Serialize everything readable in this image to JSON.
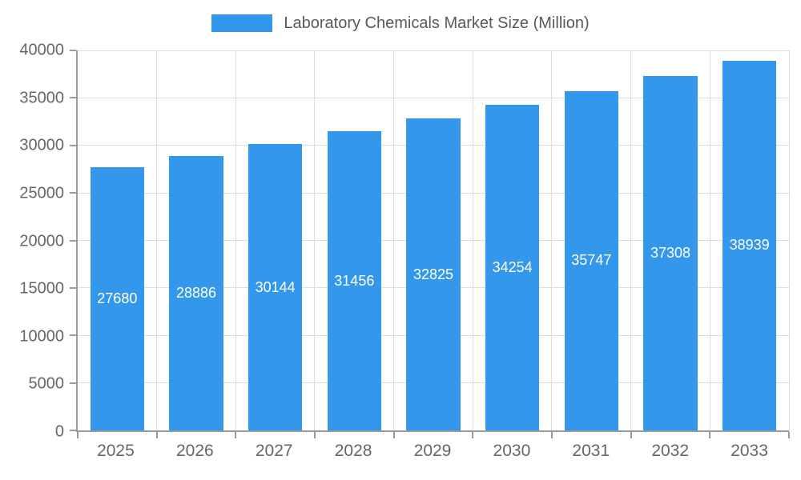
{
  "chart_data": {
    "type": "bar",
    "title": "Laboratory Chemicals Market Size (Million)",
    "categories": [
      "2025",
      "2026",
      "2027",
      "2028",
      "2029",
      "2030",
      "2031",
      "2032",
      "2033"
    ],
    "values": [
      27680,
      28886,
      30144,
      31456,
      32825,
      34254,
      35747,
      37308,
      38939
    ],
    "xlabel": "",
    "ylabel": "",
    "ylim": [
      0,
      40000
    ],
    "ytick_step": 5000,
    "grid": true,
    "legend_position": "top",
    "bar_color": "#3398EC",
    "value_label_color": "#FFFFFF",
    "axis_color": "#9A9A9A",
    "gridline_color": "#DCDCDC",
    "tick_label_color": "#666666",
    "legend_text_color": "#595959"
  }
}
